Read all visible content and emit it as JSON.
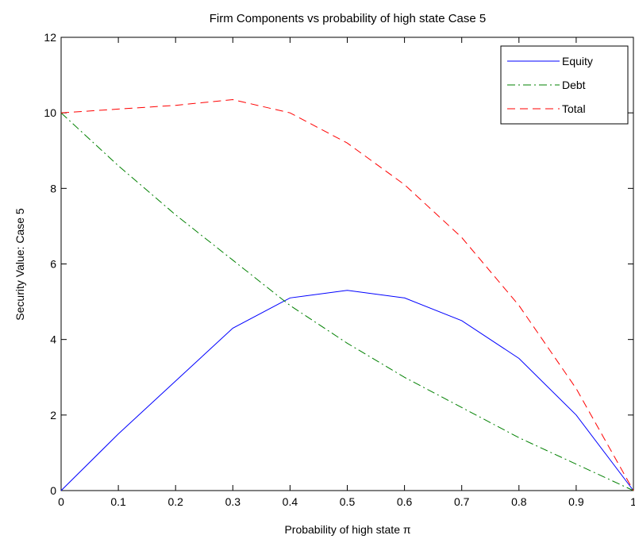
{
  "chart_data": {
    "type": "line",
    "title": "Firm Components vs probability of high state Case 5",
    "xlabel": "Probability of high state π",
    "ylabel": "Security Value: Case 5",
    "xlim": [
      0,
      1
    ],
    "ylim": [
      0,
      12
    ],
    "x_ticks": [
      "0",
      "0.1",
      "0.2",
      "0.3",
      "0.4",
      "0.5",
      "0.6",
      "0.7",
      "0.8",
      "0.9",
      "1"
    ],
    "y_ticks": [
      "0",
      "2",
      "4",
      "6",
      "8",
      "10",
      "12"
    ],
    "grid": false,
    "legend_position": "top-right",
    "x": [
      0,
      0.1,
      0.2,
      0.3,
      0.4,
      0.5,
      0.6,
      0.7,
      0.8,
      0.9,
      1.0
    ],
    "series": [
      {
        "name": "Equity",
        "color": "#0000ff",
        "style": "solid",
        "values": [
          0,
          1.5,
          2.9,
          4.3,
          5.1,
          5.3,
          5.1,
          4.5,
          3.5,
          2.0,
          0
        ]
      },
      {
        "name": "Debt",
        "color": "#008000",
        "style": "dashdot",
        "values": [
          10,
          8.6,
          7.3,
          6.1,
          4.9,
          3.9,
          3.0,
          2.2,
          1.4,
          0.7,
          0
        ]
      },
      {
        "name": "Total",
        "color": "#ff0000",
        "style": "dashed",
        "values": [
          10,
          10.1,
          10.2,
          10.35,
          10.0,
          9.2,
          8.1,
          6.7,
          4.9,
          2.7,
          0
        ]
      }
    ]
  }
}
